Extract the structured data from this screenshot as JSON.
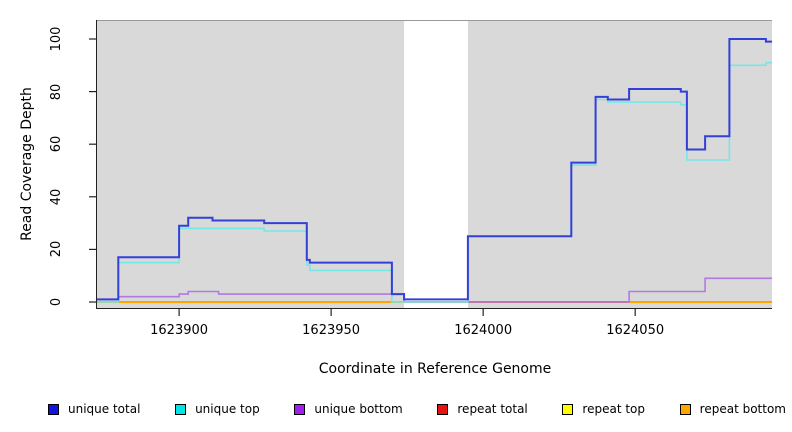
{
  "chart_data": {
    "type": "line",
    "subtype": "step-coverage-plot",
    "title": "",
    "xlabel": "Coordinate in Reference Genome",
    "ylabel": "Read Coverage Depth",
    "x_range": [
      1623873,
      1624095
    ],
    "y_range": [
      0,
      107
    ],
    "x_ticks": [
      1623900,
      1623950,
      1624000,
      1624050
    ],
    "y_ticks": [
      0,
      20,
      40,
      60,
      80,
      100
    ],
    "grid": "off",
    "plot_background_color": "#d9d9d9",
    "background_regions": [
      {
        "x0": 1623873,
        "x1": 1623974,
        "color": "#d9d9d9"
      },
      {
        "x0": 1623995,
        "x1": 1624095,
        "color": "#d9d9d9"
      }
    ],
    "uncovered_gap_region": {
      "x0": 1623974,
      "x1": 1623995
    },
    "series": [
      {
        "name": "repeat top",
        "color": "#ffe800",
        "width": 1.2,
        "points": [
          [
            1623873,
            0
          ]
        ],
        "x_end": 1624095
      },
      {
        "name": "repeat bottom",
        "color": "#ffa500",
        "width": 2,
        "points": [
          [
            1623873,
            0
          ]
        ],
        "x_end": 1624095
      },
      {
        "name": "repeat total",
        "color": "#c62828",
        "width": 1.6,
        "points": [
          [
            1623995,
            0
          ]
        ],
        "x_end": 1624048
      },
      {
        "name": "unique bottom",
        "color": "#b07ae0",
        "width": 1.6,
        "points": [
          [
            1623873,
            1
          ],
          [
            1623880,
            2
          ],
          [
            1623900,
            3
          ],
          [
            1623903,
            4
          ],
          [
            1623913,
            3
          ],
          [
            1623974,
            0
          ],
          [
            1624048,
            4
          ],
          [
            1624073,
            9
          ]
        ],
        "x_end": 1624095
      },
      {
        "name": "unique top",
        "color": "#76e7e7",
        "width": 1.6,
        "points": [
          [
            1623873,
            0
          ],
          [
            1623880,
            15
          ],
          [
            1623900,
            28
          ],
          [
            1623928,
            27
          ],
          [
            1623942,
            14
          ],
          [
            1623943,
            12
          ],
          [
            1623970,
            0
          ],
          [
            1623995,
            25
          ],
          [
            1624029,
            52
          ],
          [
            1624037,
            77
          ],
          [
            1624041,
            76
          ],
          [
            1624065,
            75
          ],
          [
            1624067,
            54
          ],
          [
            1624081,
            90
          ],
          [
            1624093,
            91
          ]
        ],
        "x_end": 1624095
      },
      {
        "name": "unique total",
        "color": "#3340d8",
        "width": 2,
        "points": [
          [
            1623873,
            1
          ],
          [
            1623880,
            17
          ],
          [
            1623900,
            29
          ],
          [
            1623903,
            32
          ],
          [
            1623911,
            31
          ],
          [
            1623928,
            30
          ],
          [
            1623942,
            16
          ],
          [
            1623943,
            15
          ],
          [
            1623970,
            3
          ],
          [
            1623974,
            1
          ],
          [
            1623995,
            25
          ],
          [
            1624029,
            53
          ],
          [
            1624037,
            78
          ],
          [
            1624041,
            77
          ],
          [
            1624048,
            81
          ],
          [
            1624065,
            80
          ],
          [
            1624067,
            58
          ],
          [
            1624073,
            63
          ],
          [
            1624081,
            100
          ],
          [
            1624093,
            99
          ]
        ],
        "x_end": 1624095
      }
    ],
    "legend": {
      "position": "bottom",
      "items": [
        {
          "label": "unique total",
          "color": "#1414e0"
        },
        {
          "label": "unique top",
          "color": "#00e5e5"
        },
        {
          "label": "unique bottom",
          "color": "#a020f0"
        },
        {
          "label": "repeat total",
          "color": "#e81212"
        },
        {
          "label": "repeat top",
          "color": "#ffff00"
        },
        {
          "label": "repeat bottom",
          "color": "#ffa500"
        }
      ]
    },
    "axis_color": "#222222",
    "box_top_border_color": "#9a9a9a"
  }
}
